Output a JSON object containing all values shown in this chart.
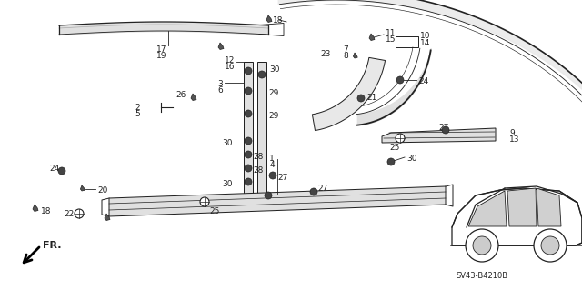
{
  "background_color": "#ffffff",
  "figsize": [
    6.4,
    3.19
  ],
  "dpi": 100,
  "diagram_code": "SV43-B4210B",
  "color": "#222222"
}
